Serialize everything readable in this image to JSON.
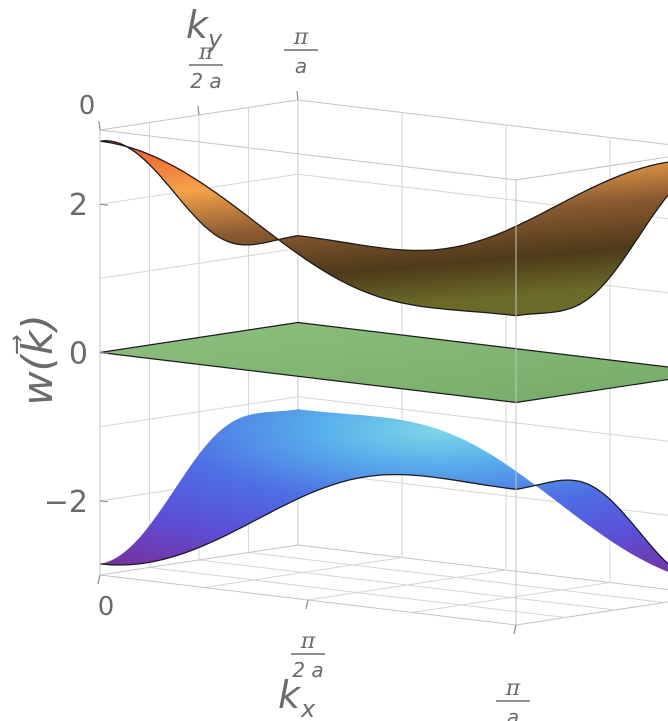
{
  "chart_data": {
    "type": "surface3d",
    "title": "",
    "zlabel": "w(k⃗)",
    "xlabel": "k",
    "xlabel_sub": "x",
    "ylabel": "k",
    "ylabel_sub": "y",
    "z_ticks": [
      {
        "value": -2,
        "label": "−2"
      },
      {
        "value": 0,
        "label": "0"
      },
      {
        "value": 2,
        "label": "2"
      }
    ],
    "x_ticks": [
      {
        "value": 0,
        "label": "0"
      },
      {
        "value": 0.5,
        "num": "π",
        "den": "2 a"
      },
      {
        "value": 1,
        "num": "π",
        "den": "a"
      }
    ],
    "y_ticks": [
      {
        "value": 0,
        "label": "0"
      },
      {
        "value": 0.5,
        "num": "π",
        "den": "2 a"
      },
      {
        "value": 1,
        "num": "π",
        "den": "a"
      }
    ],
    "x_range_over_pi_a": [
      0,
      1
    ],
    "y_range_over_pi_a": [
      0,
      1
    ],
    "z_range": [
      -3,
      3
    ],
    "grid": true,
    "surfaces": [
      {
        "name": "upper band",
        "kind": "upper",
        "corner_values": {
          "k00": 2.85,
          "k10": 2.85,
          "k01": 2.85,
          "k11": 2.85
        },
        "center_value": 0.85,
        "colors": [
          "#f25a2a",
          "#f6a64a",
          "#a26a36",
          "#5a3a1e",
          "#6b6a2a"
        ]
      },
      {
        "name": "flat band",
        "kind": "flat",
        "value": 0,
        "colors": [
          "#86bb78",
          "#6fa565"
        ]
      },
      {
        "name": "lower band",
        "kind": "lower",
        "corner_values": {
          "k00": -2.85,
          "k10": -2.85,
          "k01": -2.85,
          "k11": -2.85
        },
        "center_value": -0.85,
        "colors": [
          "#7ad0e8",
          "#5aa6e6",
          "#5b5ee0",
          "#6a3fcf",
          "#7b2f9a"
        ]
      }
    ]
  }
}
